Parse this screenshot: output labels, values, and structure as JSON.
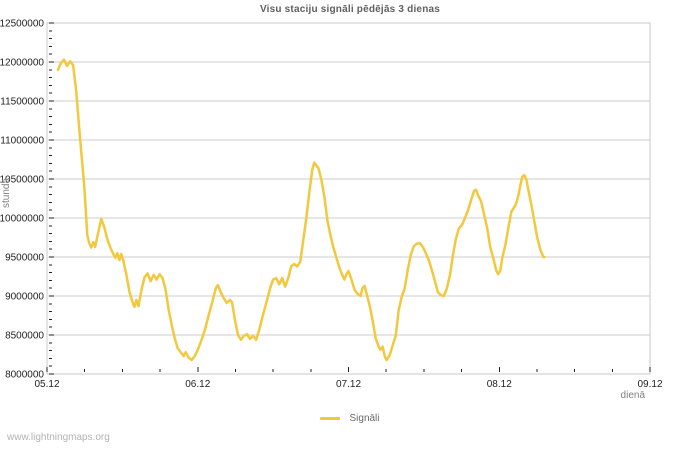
{
  "page": {
    "watermark": "www.lightningmaps.org"
  },
  "chart_data": {
    "type": "line",
    "title": "Visu staciju signāli pēdējās 3 dienas",
    "ylabel": "stundā",
    "xlabel": "dienā",
    "legend_position": "bottom-center",
    "grid": "horizontal-only",
    "colors": {
      "line": "#f2c83e",
      "gridline": "#cccccc",
      "plot_border": "#c9c9c9",
      "tick": "#222222",
      "tick_label": "#1f1f1f",
      "title": "#5f5f5f",
      "axis_unit_label": "#808080",
      "watermark": "#b3b3b3",
      "background": "#ffffff"
    },
    "x_tick_labels": [
      "05.12",
      "06.12",
      "07.12",
      "08.12",
      "09.12"
    ],
    "y_tick_labels": [
      "8000000",
      "8500000",
      "9000000",
      "9500000",
      "10000000",
      "10500000",
      "11000000",
      "11500000",
      "12000000",
      "12500000"
    ],
    "ylim": [
      8000000,
      12500000
    ],
    "xlim_days": [
      0,
      4
    ],
    "y_minor_tick_step": 100000,
    "y_major_tick_step": 500000,
    "x_minor_tick_days": 0.25,
    "x_major_tick_days": 1,
    "legend": [
      {
        "name": "Signāli",
        "color": "#f2c83e"
      }
    ],
    "series": [
      {
        "name": "Signāli",
        "color": "#f2c83e",
        "x_unit": "days_after_05.12",
        "y_unit": "signals_per_hour",
        "points": [
          [
            0.073,
            11900000
          ],
          [
            0.093,
            11990000
          ],
          [
            0.113,
            12030000
          ],
          [
            0.133,
            11950000
          ],
          [
            0.153,
            12010000
          ],
          [
            0.173,
            11960000
          ],
          [
            0.193,
            11640000
          ],
          [
            0.22,
            11000000
          ],
          [
            0.247,
            10420000
          ],
          [
            0.267,
            9780000
          ],
          [
            0.28,
            9680000
          ],
          [
            0.293,
            9620000
          ],
          [
            0.307,
            9690000
          ],
          [
            0.32,
            9630000
          ],
          [
            0.34,
            9820000
          ],
          [
            0.36,
            9990000
          ],
          [
            0.38,
            9880000
          ],
          [
            0.4,
            9730000
          ],
          [
            0.42,
            9620000
          ],
          [
            0.44,
            9540000
          ],
          [
            0.453,
            9490000
          ],
          [
            0.467,
            9550000
          ],
          [
            0.48,
            9460000
          ],
          [
            0.493,
            9540000
          ],
          [
            0.507,
            9450000
          ],
          [
            0.527,
            9270000
          ],
          [
            0.547,
            9050000
          ],
          [
            0.567,
            8920000
          ],
          [
            0.58,
            8860000
          ],
          [
            0.593,
            8950000
          ],
          [
            0.607,
            8870000
          ],
          [
            0.627,
            9080000
          ],
          [
            0.647,
            9240000
          ],
          [
            0.667,
            9290000
          ],
          [
            0.687,
            9190000
          ],
          [
            0.707,
            9270000
          ],
          [
            0.727,
            9210000
          ],
          [
            0.747,
            9280000
          ],
          [
            0.767,
            9230000
          ],
          [
            0.787,
            9080000
          ],
          [
            0.807,
            8820000
          ],
          [
            0.827,
            8630000
          ],
          [
            0.847,
            8460000
          ],
          [
            0.867,
            8330000
          ],
          [
            0.887,
            8280000
          ],
          [
            0.907,
            8230000
          ],
          [
            0.92,
            8280000
          ],
          [
            0.94,
            8210000
          ],
          [
            0.96,
            8180000
          ],
          [
            0.98,
            8230000
          ],
          [
            1.0,
            8310000
          ],
          [
            1.02,
            8410000
          ],
          [
            1.047,
            8560000
          ],
          [
            1.073,
            8760000
          ],
          [
            1.1,
            8950000
          ],
          [
            1.12,
            9100000
          ],
          [
            1.133,
            9140000
          ],
          [
            1.153,
            9050000
          ],
          [
            1.173,
            8970000
          ],
          [
            1.193,
            8910000
          ],
          [
            1.213,
            8950000
          ],
          [
            1.227,
            8920000
          ],
          [
            1.247,
            8690000
          ],
          [
            1.267,
            8500000
          ],
          [
            1.287,
            8440000
          ],
          [
            1.307,
            8490000
          ],
          [
            1.327,
            8510000
          ],
          [
            1.347,
            8450000
          ],
          [
            1.367,
            8490000
          ],
          [
            1.387,
            8440000
          ],
          [
            1.407,
            8560000
          ],
          [
            1.433,
            8760000
          ],
          [
            1.46,
            8950000
          ],
          [
            1.48,
            9100000
          ],
          [
            1.5,
            9210000
          ],
          [
            1.52,
            9230000
          ],
          [
            1.54,
            9150000
          ],
          [
            1.56,
            9230000
          ],
          [
            1.58,
            9120000
          ],
          [
            1.6,
            9230000
          ],
          [
            1.62,
            9380000
          ],
          [
            1.64,
            9410000
          ],
          [
            1.66,
            9380000
          ],
          [
            1.68,
            9440000
          ],
          [
            1.7,
            9720000
          ],
          [
            1.72,
            10000000
          ],
          [
            1.74,
            10330000
          ],
          [
            1.76,
            10620000
          ],
          [
            1.773,
            10710000
          ],
          [
            1.787,
            10670000
          ],
          [
            1.8,
            10640000
          ],
          [
            1.82,
            10490000
          ],
          [
            1.84,
            10270000
          ],
          [
            1.86,
            9970000
          ],
          [
            1.88,
            9780000
          ],
          [
            1.9,
            9620000
          ],
          [
            1.92,
            9490000
          ],
          [
            1.94,
            9360000
          ],
          [
            1.96,
            9260000
          ],
          [
            1.973,
            9210000
          ],
          [
            1.987,
            9280000
          ],
          [
            2.0,
            9320000
          ],
          [
            2.02,
            9210000
          ],
          [
            2.04,
            9080000
          ],
          [
            2.06,
            9030000
          ],
          [
            2.08,
            9000000
          ],
          [
            2.093,
            9100000
          ],
          [
            2.107,
            9130000
          ],
          [
            2.12,
            9030000
          ],
          [
            2.14,
            8880000
          ],
          [
            2.16,
            8690000
          ],
          [
            2.18,
            8460000
          ],
          [
            2.2,
            8350000
          ],
          [
            2.213,
            8310000
          ],
          [
            2.227,
            8350000
          ],
          [
            2.24,
            8230000
          ],
          [
            2.253,
            8180000
          ],
          [
            2.273,
            8240000
          ],
          [
            2.293,
            8370000
          ],
          [
            2.313,
            8490000
          ],
          [
            2.333,
            8820000
          ],
          [
            2.353,
            8990000
          ],
          [
            2.373,
            9100000
          ],
          [
            2.393,
            9330000
          ],
          [
            2.413,
            9530000
          ],
          [
            2.433,
            9640000
          ],
          [
            2.453,
            9670000
          ],
          [
            2.473,
            9680000
          ],
          [
            2.493,
            9630000
          ],
          [
            2.513,
            9550000
          ],
          [
            2.533,
            9460000
          ],
          [
            2.553,
            9330000
          ],
          [
            2.573,
            9190000
          ],
          [
            2.593,
            9050000
          ],
          [
            2.613,
            9010000
          ],
          [
            2.633,
            9000000
          ],
          [
            2.653,
            9100000
          ],
          [
            2.673,
            9270000
          ],
          [
            2.693,
            9530000
          ],
          [
            2.713,
            9740000
          ],
          [
            2.733,
            9870000
          ],
          [
            2.753,
            9910000
          ],
          [
            2.773,
            10000000
          ],
          [
            2.793,
            10100000
          ],
          [
            2.813,
            10230000
          ],
          [
            2.833,
            10350000
          ],
          [
            2.847,
            10360000
          ],
          [
            2.86,
            10290000
          ],
          [
            2.88,
            10210000
          ],
          [
            2.9,
            10040000
          ],
          [
            2.92,
            9870000
          ],
          [
            2.94,
            9630000
          ],
          [
            2.96,
            9490000
          ],
          [
            2.98,
            9330000
          ],
          [
            2.993,
            9280000
          ],
          [
            3.007,
            9330000
          ],
          [
            3.02,
            9490000
          ],
          [
            3.04,
            9650000
          ],
          [
            3.06,
            9870000
          ],
          [
            3.08,
            10080000
          ],
          [
            3.1,
            10140000
          ],
          [
            3.113,
            10190000
          ],
          [
            3.127,
            10290000
          ],
          [
            3.14,
            10420000
          ],
          [
            3.153,
            10530000
          ],
          [
            3.167,
            10550000
          ],
          [
            3.18,
            10490000
          ],
          [
            3.193,
            10360000
          ],
          [
            3.213,
            10170000
          ],
          [
            3.233,
            9950000
          ],
          [
            3.253,
            9740000
          ],
          [
            3.273,
            9590000
          ],
          [
            3.293,
            9500000
          ],
          [
            3.3,
            9500000
          ]
        ]
      }
    ]
  }
}
